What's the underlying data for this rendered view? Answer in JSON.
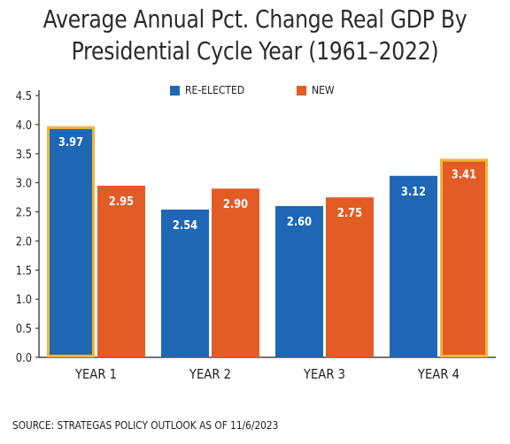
{
  "title_lines": [
    "Average Annual Pct. Change Real GDP By",
    "Presidential Cycle Year (1961–2022)"
  ],
  "source": "SOURCE: STRATEGAS POLICY OUTLOOK AS OF 11/6/2023",
  "colors": {
    "re_elected": "#1f67b5",
    "new": "#e35c26",
    "highlight": "#f4b43a",
    "axis": "#222222",
    "grid": "#cfcfcf"
  },
  "chart_data": {
    "type": "bar",
    "title": "Average Annual Pct. Change Real GDP By Presidential Cycle Year (1961–2022)",
    "categories": [
      "YEAR 1",
      "YEAR 2",
      "YEAR 3",
      "YEAR 4"
    ],
    "series": [
      {
        "name": "RE-ELECTED",
        "values": [
          3.97,
          2.54,
          2.6,
          3.12
        ],
        "labels": [
          "3.97",
          "2.54",
          "2.60",
          "3.12"
        ]
      },
      {
        "name": "NEW",
        "values": [
          2.95,
          2.9,
          2.75,
          3.41
        ],
        "labels": [
          "2.95",
          "2.90",
          "2.75",
          "3.41"
        ]
      }
    ],
    "highlighted": [
      {
        "series": 0,
        "category": 0
      },
      {
        "series": 1,
        "category": 3
      }
    ],
    "ylim": [
      0,
      4.5
    ],
    "yticks": [
      "0.0",
      "0.5",
      "1.0",
      "1.5",
      "2.0",
      "2.5",
      "3.0",
      "3.5",
      "4.0",
      "4.5"
    ],
    "xlabel": "",
    "ylabel": "",
    "legend_position": "top-center",
    "grid": false
  }
}
